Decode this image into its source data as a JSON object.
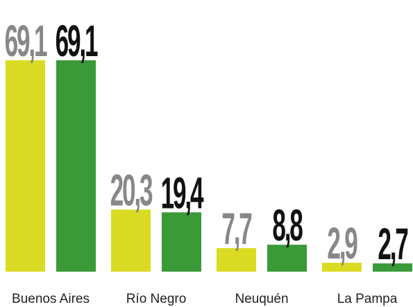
{
  "chart_data": {
    "type": "bar",
    "categories": [
      "Buenos Aires",
      "Río Negro",
      "Neuquén",
      "La Pampa"
    ],
    "series": [
      {
        "color": "#d9dc22",
        "values": [
          69.1,
          20.3,
          7.7,
          2.9
        ],
        "value_labels": [
          "69,1",
          "20,3",
          "7,7",
          "2,9"
        ]
      },
      {
        "color": "#3a9a38",
        "values": [
          69.1,
          19.4,
          8.8,
          2.7
        ],
        "value_labels": [
          "69,1",
          "19,4",
          "8,8",
          "2,7"
        ]
      }
    ],
    "label_colors": [
      "#888888",
      "#111111"
    ],
    "ylim": [
      0,
      70
    ]
  }
}
